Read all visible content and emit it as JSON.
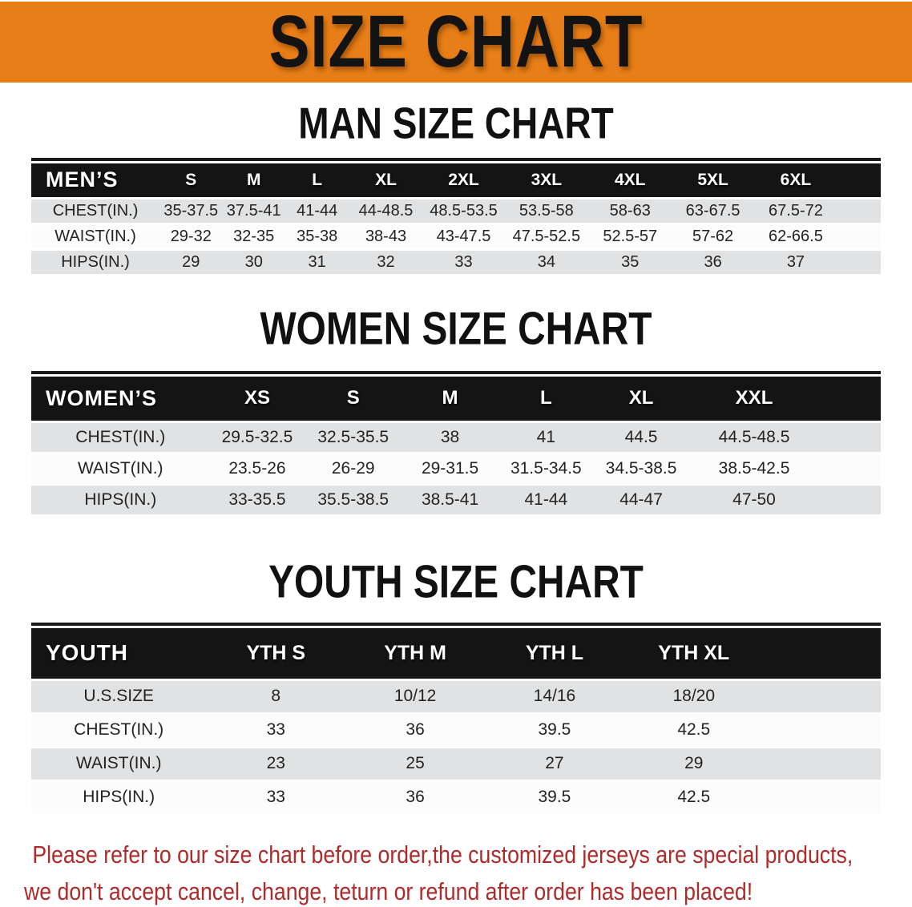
{
  "banner": {
    "title": "SIZE CHART"
  },
  "colors": {
    "banner_bg": "#E87E17",
    "header_bar": "#141414",
    "row_gray": "#E1E2E3",
    "footer_red": "#AF2B2B"
  },
  "sections": {
    "men": {
      "heading": "MAN SIZE CHART",
      "table": {
        "label": "MEN’S",
        "columns": [
          "S",
          "M",
          "L",
          "XL",
          "2XL",
          "3XL",
          "4XL",
          "5XL",
          "6XL"
        ],
        "rows": [
          {
            "label": "CHEST(IN.)",
            "values": [
              "35-37.5",
              "37.5-41",
              "41-44",
              "44-48.5",
              "48.5-53.5",
              "53.5-58",
              "58-63",
              "63-67.5",
              "67.5-72"
            ]
          },
          {
            "label": "WAIST(IN.)",
            "values": [
              "29-32",
              "32-35",
              "35-38",
              "38-43",
              "43-47.5",
              "47.5-52.5",
              "52.5-57",
              "57-62",
              "62-66.5"
            ]
          },
          {
            "label": "HIPS(IN.)",
            "values": [
              "29",
              "30",
              "31",
              "32",
              "33",
              "34",
              "35",
              "36",
              "37"
            ]
          }
        ]
      }
    },
    "women": {
      "heading": "WOMEN SIZE CHART",
      "table": {
        "label": "WOMEN’S",
        "columns": [
          "XS",
          "S",
          "M",
          "L",
          "XL",
          "XXL"
        ],
        "rows": [
          {
            "label": "CHEST(IN.)",
            "values": [
              "29.5-32.5",
              "32.5-35.5",
              "38",
              "41",
              "44.5",
              "44.5-48.5"
            ]
          },
          {
            "label": "WAIST(IN.)",
            "values": [
              "23.5-26",
              "26-29",
              "29-31.5",
              "31.5-34.5",
              "34.5-38.5",
              "38.5-42.5"
            ]
          },
          {
            "label": "HIPS(IN.)",
            "values": [
              "33-35.5",
              "35.5-38.5",
              "38.5-41",
              "41-44",
              "44-47",
              "47-50"
            ]
          }
        ]
      }
    },
    "youth": {
      "heading": "YOUTH SIZE CHART",
      "table": {
        "label": "YOUTH",
        "columns": [
          "YTH S",
          "YTH M",
          "YTH L",
          "YTH XL"
        ],
        "rows": [
          {
            "label": "U.S.SIZE",
            "values": [
              "8",
              "10/12",
              "14/16",
              "18/20"
            ]
          },
          {
            "label": "CHEST(IN.)",
            "values": [
              "33",
              "36",
              "39.5",
              "42.5"
            ]
          },
          {
            "label": "WAIST(IN.)",
            "values": [
              "23",
              "25",
              "27",
              "29"
            ]
          },
          {
            "label": "HIPS(IN.)",
            "values": [
              "33",
              "36",
              "39.5",
              "42.5"
            ]
          }
        ]
      }
    }
  },
  "footer": {
    "lines": [
      "Please refer to our size chart before order,the customized jerseys are special products,",
      "we don't accept cancel, change, teturn or refund after order has been placed!"
    ]
  }
}
